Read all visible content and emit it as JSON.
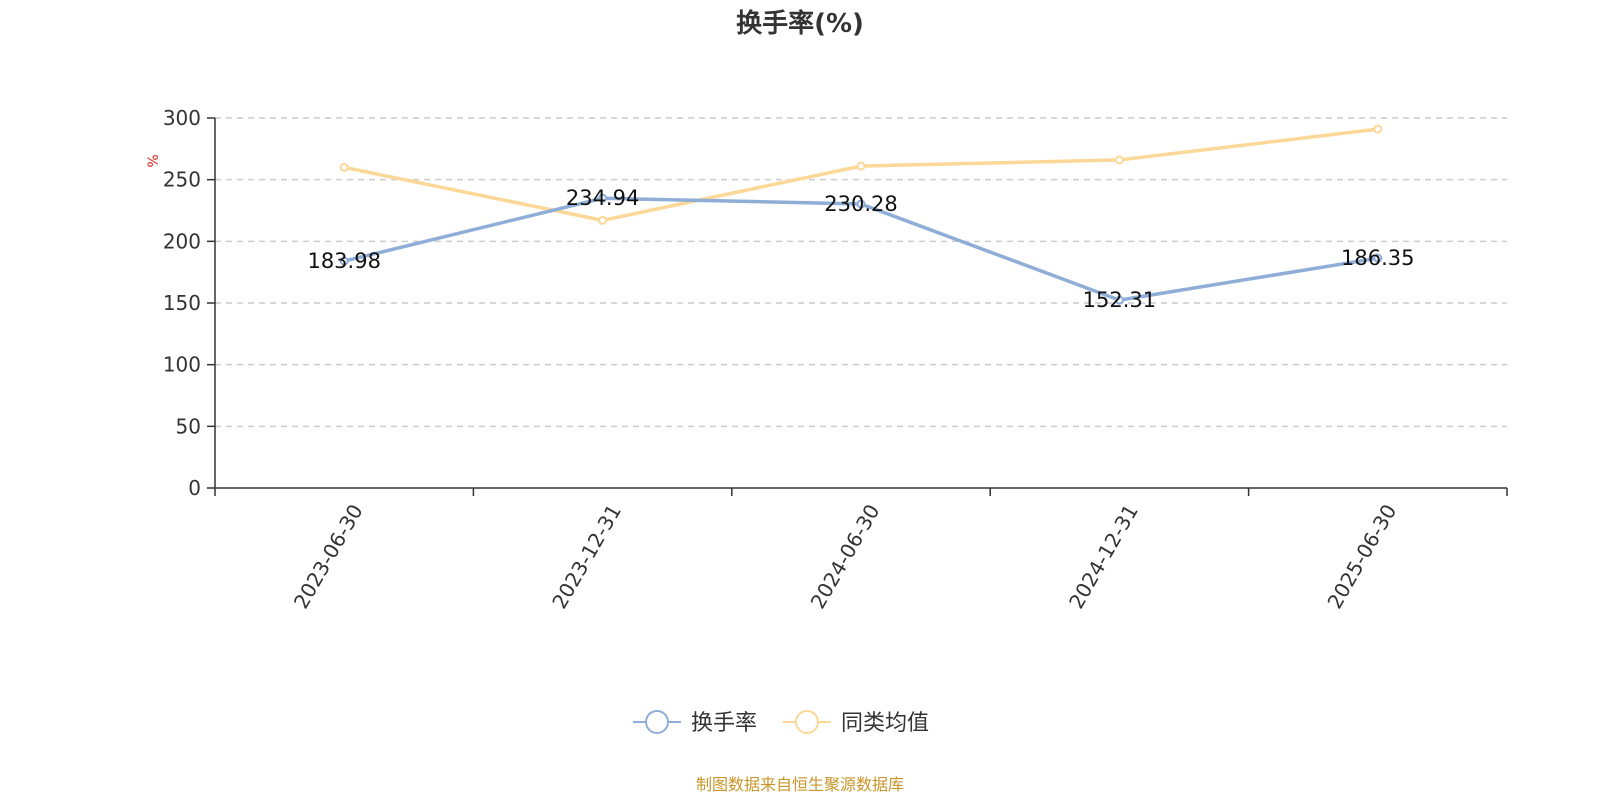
{
  "chart_data": {
    "type": "line",
    "title": "换手率(%)",
    "ylabel": "%",
    "categories": [
      "2023-06-30",
      "2023-12-31",
      "2024-06-30",
      "2024-12-31",
      "2025-06-30"
    ],
    "ylim": [
      0,
      300
    ],
    "yticks": [
      "0",
      "50",
      "100",
      "150",
      "200",
      "250",
      "300"
    ],
    "grid": true,
    "legend_position": "bottom",
    "series": [
      {
        "name": "换手率",
        "color": "#8eaed8",
        "values": [
          183.98,
          234.94,
          230.28,
          152.31,
          186.35
        ],
        "labels": [
          "183.98",
          "234.94",
          "230.28",
          "152.31",
          "186.35"
        ]
      },
      {
        "name": "同类均值",
        "color": "#fbd897",
        "values": [
          260,
          217,
          261,
          266,
          291
        ]
      }
    ]
  },
  "footer": {
    "source": "制图数据来自恒生聚源数据库",
    "source_color": "#c8962a"
  },
  "colors": {
    "unit_label": "#e02020",
    "axis": "#333333",
    "grid": "#cccccc"
  }
}
